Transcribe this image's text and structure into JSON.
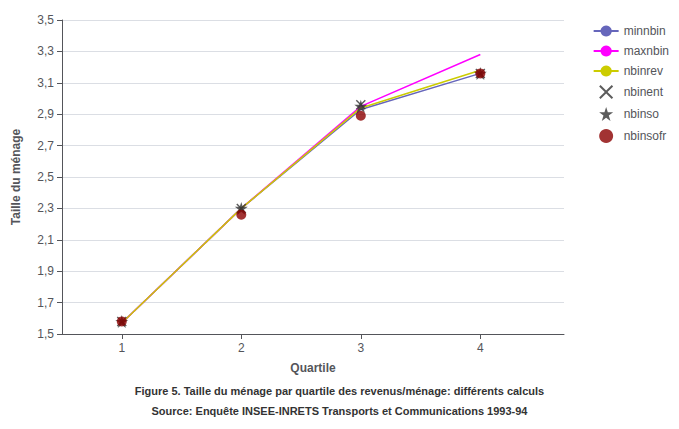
{
  "chart_data": {
    "type": "line",
    "annotations": [
      "Figure 5. Taille du ménage par quartile des revenus/ménage: différents calculs",
      "Source: Enquête INSEE-INRETS Transports et Communications 1993-94"
    ],
    "xlabel": "Quartile",
    "ylabel": "Taille du ménage",
    "x": [
      1,
      2,
      3,
      4
    ],
    "series": [
      {
        "name": "minnbin",
        "type": "line",
        "color": "#6666bb",
        "line_style": "solid",
        "values": [
          1.57,
          2.3,
          2.93,
          3.16
        ]
      },
      {
        "name": "maxnbin",
        "type": "line",
        "color": "#ff00ff",
        "line_style": "solid",
        "values": [
          1.57,
          2.3,
          2.95,
          3.28
        ]
      },
      {
        "name": "nbinrev",
        "type": "line",
        "color": "#cccc00",
        "line_style": "solid",
        "values": [
          1.57,
          2.3,
          2.94,
          3.18
        ]
      },
      {
        "name": "nbinent",
        "type": "scatter",
        "color": "#333333",
        "marker": "x",
        "values": [
          1.58,
          2.3,
          2.96,
          3.16
        ]
      },
      {
        "name": "nbinso",
        "type": "scatter",
        "color": "#333333",
        "marker": "star",
        "values": [
          1.58,
          2.3,
          2.95,
          3.16
        ]
      },
      {
        "name": "nbinsofr",
        "type": "scatter",
        "color": "#8b0000",
        "marker": "circle",
        "values": [
          1.58,
          2.26,
          2.89,
          3.16
        ]
      }
    ],
    "xlim": [
      0.5,
      4.7
    ],
    "xticks": [
      1,
      2,
      3,
      4
    ],
    "ylim": [
      1.5,
      3.5
    ],
    "yticks": [
      {
        "value": 1.5,
        "label": "1,5"
      },
      {
        "value": 1.7,
        "label": "1,7"
      },
      {
        "value": 1.9,
        "label": "1,9"
      },
      {
        "value": 2.1,
        "label": "2,1"
      },
      {
        "value": 2.3,
        "label": "2,3"
      },
      {
        "value": 2.5,
        "label": "2,5"
      },
      {
        "value": 2.7,
        "label": "2,7"
      },
      {
        "value": 2.9,
        "label": "2,9"
      },
      {
        "value": 3.1,
        "label": "3,1"
      },
      {
        "value": 3.3,
        "label": "3,3"
      },
      {
        "value": 3.5,
        "label": "3,5"
      }
    ],
    "grid": "y",
    "legend": "upper right"
  }
}
